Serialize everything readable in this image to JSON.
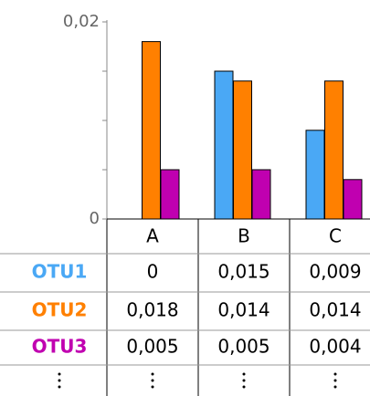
{
  "chart_data": {
    "type": "bar",
    "categories": [
      "A",
      "B",
      "C"
    ],
    "series": [
      {
        "name": "OTU1",
        "color": "#4aa8f5",
        "values": [
          0,
          0.015,
          0.009
        ],
        "value_labels": [
          "0",
          "0,015",
          "0,009"
        ]
      },
      {
        "name": "OTU2",
        "color": "#ff8000",
        "values": [
          0.018,
          0.014,
          0.014
        ],
        "value_labels": [
          "0,018",
          "0,014",
          "0,014"
        ]
      },
      {
        "name": "OTU3",
        "color": "#c000b0",
        "values": [
          0.005,
          0.005,
          0.004
        ],
        "value_labels": [
          "0,005",
          "0,005",
          "0,004"
        ]
      }
    ],
    "ylim": [
      0,
      0.02
    ],
    "yticks": [
      0,
      {
        "value": 0.02,
        "label": "0,02"
      }
    ],
    "minor_yticks": [
      0.005,
      0.01,
      0.015
    ]
  }
}
